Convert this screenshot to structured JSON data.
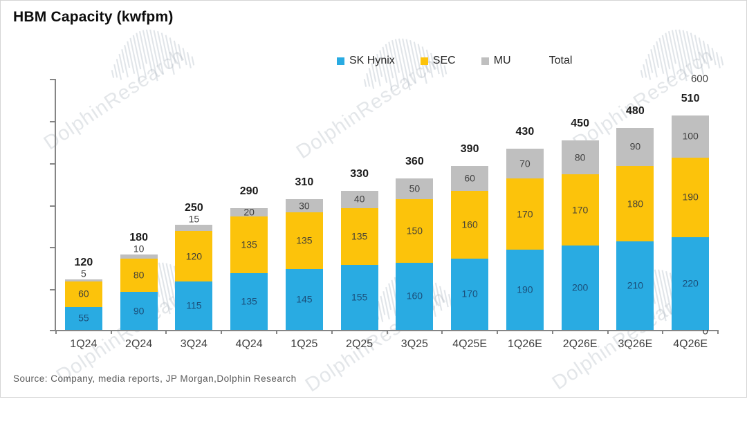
{
  "page": {
    "title": "HBM Capacity (kwfpm)",
    "source": "Source:  Company,  media reports,  JP Morgan,Dolphin Research",
    "watermark_text": "DolphinResearch"
  },
  "legend": {
    "items": [
      {
        "label": "SK Hynix",
        "color": "#29ABE2",
        "marker": true
      },
      {
        "label": "SEC",
        "color": "#FCC30B",
        "marker": true
      },
      {
        "label": "MU",
        "color": "#BFBFBF",
        "marker": true
      },
      {
        "label": "Total",
        "color": "",
        "marker": false
      }
    ]
  },
  "chart_data": {
    "type": "bar",
    "stacked": true,
    "title": "HBM Capacity (kwfpm)",
    "xlabel": "",
    "ylabel": "",
    "ylim": [
      0,
      600
    ],
    "yticks": [
      0,
      100,
      200,
      300,
      400,
      500,
      600
    ],
    "grid": false,
    "legend_position": "top-center",
    "categories": [
      "1Q24",
      "2Q24",
      "3Q24",
      "4Q24",
      "1Q25",
      "2Q25",
      "3Q25",
      "4Q25E",
      "1Q26E",
      "2Q26E",
      "3Q26E",
      "4Q26E"
    ],
    "series": [
      {
        "name": "SK Hynix",
        "color": "#29ABE2",
        "label_color": "#1B4E79",
        "values": [
          55,
          90,
          115,
          135,
          145,
          155,
          160,
          170,
          190,
          200,
          210,
          220
        ]
      },
      {
        "name": "SEC",
        "color": "#FCC30B",
        "label_color": "#454237",
        "values": [
          60,
          80,
          120,
          135,
          135,
          135,
          150,
          160,
          170,
          170,
          180,
          190
        ]
      },
      {
        "name": "MU",
        "color": "#BFBFBF",
        "label_color": "#404040",
        "values": [
          5,
          10,
          15,
          20,
          30,
          40,
          50,
          60,
          70,
          80,
          90,
          100
        ]
      }
    ],
    "totals": [
      120,
      180,
      250,
      290,
      310,
      330,
      360,
      390,
      430,
      450,
      480,
      510
    ]
  }
}
